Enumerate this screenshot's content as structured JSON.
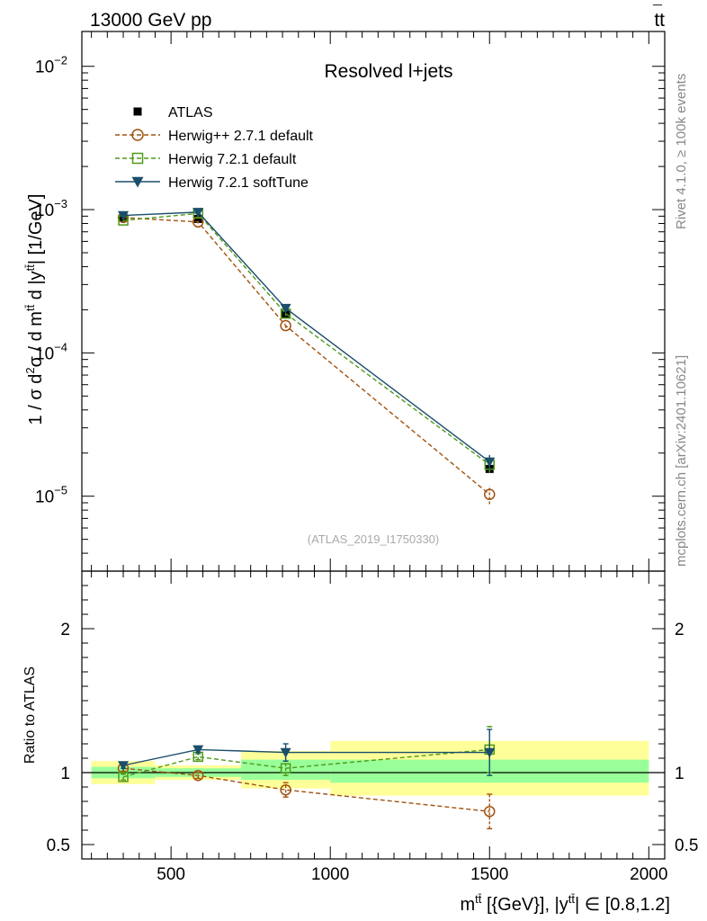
{
  "header": {
    "left": "13000 GeV pp",
    "right_main": "tt",
    "right_bar": "¯"
  },
  "watermark": {
    "rivet": "Rivet 4.1.0, ≥ 100k events",
    "mcplots": "mcplots.cern.ch [arXiv:2401.10621]",
    "analysis": "(ATLAS_2019_I1750330)"
  },
  "colors": {
    "atlas": "#000000",
    "herwigpp": "#a0520f",
    "herwig721": "#4f9a1b",
    "softtune": "#1b4e6b",
    "band_inner": "#99ff99",
    "band_outer": "#ffff99"
  },
  "chart_data": [
    {
      "type": "line",
      "title": "Resolved l+jets",
      "ylabel": "1 / σ d²σ / d m^tt̄ d |y^tt̄| [1/GeV]",
      "yscale": "log",
      "xlim": [
        220,
        2050
      ],
      "ylim": [
        3e-06,
        0.0175
      ],
      "y_ticks": [
        {
          "value": 1e-05,
          "base": "10",
          "exp": "−5"
        },
        {
          "value": 0.0001,
          "base": "10",
          "exp": "−4"
        },
        {
          "value": 0.001,
          "base": "10",
          "exp": "−3"
        },
        {
          "value": 0.01,
          "base": "10",
          "exp": "−2"
        }
      ],
      "legend": [
        {
          "label": "ATLAS",
          "series": "atlas"
        },
        {
          "label": "Herwig++ 2.7.1 default",
          "series": "herwigpp"
        },
        {
          "label": "Herwig 7.2.1 default",
          "series": "herwig721"
        },
        {
          "label": "Herwig 7.2.1 softTune",
          "series": "softtune"
        }
      ],
      "series": [
        {
          "key": "atlas",
          "name": "ATLAS",
          "x": [
            350,
            585,
            860,
            1500
          ],
          "values": [
            0.00088,
            0.00086,
            0.000185,
            1.55e-05
          ]
        },
        {
          "key": "herwigpp",
          "name": "Herwig++ 2.7.1 default",
          "x": [
            350,
            585,
            860,
            1500
          ],
          "values": [
            0.00088,
            0.00082,
            0.000155,
            1.03e-05
          ],
          "err": [
            2e-05,
            2e-05,
            6e-06,
            1.5e-06
          ]
        },
        {
          "key": "herwig721",
          "name": "Herwig 7.2.1 default",
          "x": [
            350,
            585,
            860,
            1500
          ],
          "values": [
            0.00084,
            0.00094,
            0.000188,
            1.66e-05
          ],
          "err": [
            2e-05,
            2e-05,
            7e-06,
            2e-06
          ]
        },
        {
          "key": "softtune",
          "name": "Herwig 7.2.1 softTune",
          "x": [
            350,
            585,
            860,
            1500
          ],
          "values": [
            0.00091,
            0.00096,
            0.000205,
            1.74e-05
          ],
          "err": [
            2e-05,
            2e-05,
            7e-06,
            2e-06
          ]
        }
      ]
    },
    {
      "type": "line",
      "ylabel": "Ratio to ATLAS",
      "xlabel": "m^tt̄ [{GeV}], |y^tt̄| ∈ [0.8,1.2]",
      "xlim": [
        220,
        2050
      ],
      "ylim": [
        0.4,
        2.4
      ],
      "x_ticks": [
        500,
        1000,
        1500,
        2000
      ],
      "y_ticks": [
        "0.5",
        "1",
        "2"
      ],
      "bins": [
        {
          "lo": 250,
          "hi": 450,
          "inner": [
            0.96,
            1.04
          ],
          "outer": [
            0.92,
            1.08
          ]
        },
        {
          "lo": 450,
          "hi": 720,
          "inner": [
            0.97,
            1.03
          ],
          "outer": [
            0.95,
            1.05
          ]
        },
        {
          "lo": 720,
          "hi": 1000,
          "inner": [
            0.95,
            1.09
          ],
          "outer": [
            0.89,
            1.15
          ]
        },
        {
          "lo": 1000,
          "hi": 2000,
          "inner": [
            0.93,
            1.09
          ],
          "outer": [
            0.84,
            1.22
          ]
        }
      ],
      "series": [
        {
          "key": "herwigpp",
          "x": [
            350,
            585,
            860,
            1500
          ],
          "values": [
            1.03,
            0.98,
            0.88,
            0.73
          ],
          "err": [
            0.02,
            0.02,
            0.05,
            0.12
          ]
        },
        {
          "key": "herwig721",
          "x": [
            350,
            585,
            860,
            1500
          ],
          "values": [
            0.97,
            1.11,
            1.03,
            1.16
          ],
          "err": [
            0.02,
            0.02,
            0.05,
            0.16
          ]
        },
        {
          "key": "softtune",
          "x": [
            350,
            585,
            860,
            1500
          ],
          "values": [
            1.05,
            1.16,
            1.14,
            1.14
          ],
          "err": [
            0.02,
            0.02,
            0.06,
            0.16
          ]
        }
      ]
    }
  ]
}
